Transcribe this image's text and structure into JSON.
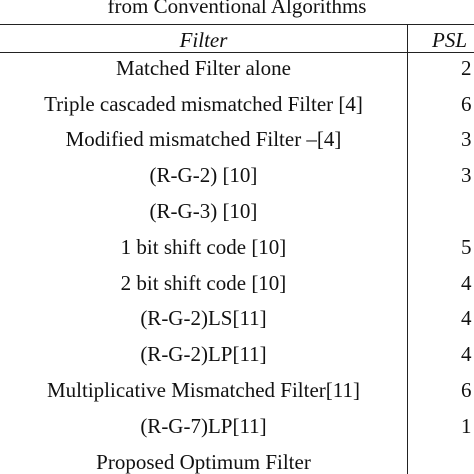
{
  "caption": "from Conventional Algorithms",
  "table": {
    "header": {
      "filter": "Filter",
      "psl": "PSL"
    },
    "rows": [
      {
        "filter": "Matched Filter alone",
        "psl": "2"
      },
      {
        "filter": "Triple cascaded mismatched Filter [4]",
        "psl": "6"
      },
      {
        "filter": "Modified mismatched Filter –[4]",
        "psl": "3"
      },
      {
        "filter": "(R-G-2) [10]",
        "psl": "3"
      },
      {
        "filter": "(R-G-3) [10]",
        "psl": ""
      },
      {
        "filter": "1 bit shift code [10]",
        "psl": "5"
      },
      {
        "filter": "2 bit shift code [10]",
        "psl": "4"
      },
      {
        "filter": "(R-G-2)LS[11]",
        "psl": "4"
      },
      {
        "filter": "(R-G-2)LP[11]",
        "psl": "4"
      },
      {
        "filter": "Multiplicative Mismatched Filter[11]",
        "psl": "6"
      },
      {
        "filter": "(R-G-7)LP[11]",
        "psl": "1"
      },
      {
        "filter": "Proposed Optimum Filter",
        "psl": ""
      }
    ]
  }
}
